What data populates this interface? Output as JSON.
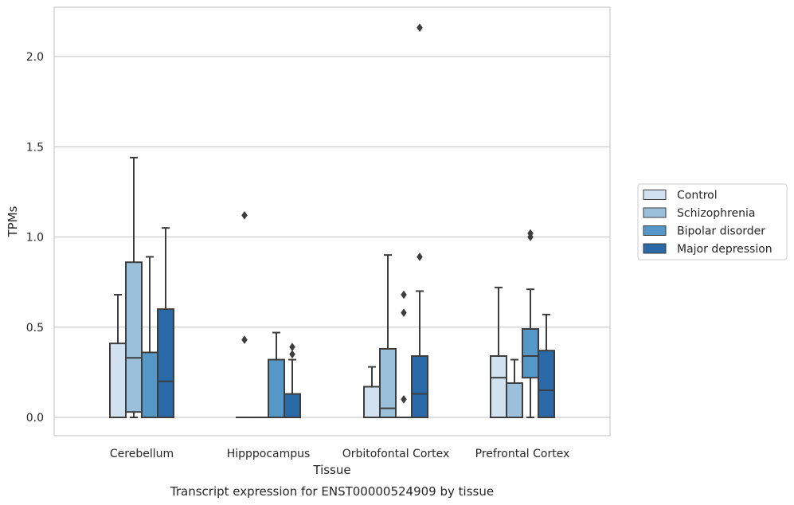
{
  "chart_data": {
    "type": "box",
    "caption": "Transcript expression for ENST00000524909 by tissue",
    "xlabel": "Tissue",
    "ylabel": "TPMs",
    "ylim": [
      -0.1,
      2.28
    ],
    "yticks": [
      0.0,
      0.5,
      1.0,
      1.5,
      2.0
    ],
    "ytick_labels": [
      "0.0",
      "0.5",
      "1.0",
      "1.5",
      "2.0"
    ],
    "grid": "horizontal",
    "legend_position": "right",
    "categories": [
      "Cerebellum",
      "Hipppocampus",
      "Orbitofontal Cortex",
      "Prefrontal Cortex"
    ],
    "series": [
      {
        "name": "Control",
        "color": "#d1e1f0",
        "boxes": [
          {
            "q1": 0.0,
            "median": 0.0,
            "q3": 0.41,
            "whisker_low": 0.0,
            "whisker_high": 0.68,
            "outliers": []
          },
          {
            "q1": 0.0,
            "median": 0.0,
            "q3": 0.0,
            "whisker_low": 0.0,
            "whisker_high": 0.0,
            "outliers": [
              1.12,
              0.43
            ]
          },
          {
            "q1": 0.0,
            "median": 0.0,
            "q3": 0.17,
            "whisker_low": 0.0,
            "whisker_high": 0.28,
            "outliers": []
          },
          {
            "q1": 0.0,
            "median": 0.22,
            "q3": 0.34,
            "whisker_low": 0.0,
            "whisker_high": 0.72,
            "outliers": []
          }
        ]
      },
      {
        "name": "Schizophrenia",
        "color": "#9ac0db",
        "boxes": [
          {
            "q1": 0.03,
            "median": 0.33,
            "q3": 0.86,
            "whisker_low": 0.0,
            "whisker_high": 1.44,
            "outliers": []
          },
          {
            "q1": 0.0,
            "median": 0.0,
            "q3": 0.0,
            "whisker_low": 0.0,
            "whisker_high": 0.0,
            "outliers": []
          },
          {
            "q1": 0.0,
            "median": 0.05,
            "q3": 0.38,
            "whisker_low": 0.0,
            "whisker_high": 0.9,
            "outliers": []
          },
          {
            "q1": 0.0,
            "median": 0.0,
            "q3": 0.19,
            "whisker_low": 0.0,
            "whisker_high": 0.32,
            "outliers": []
          }
        ]
      },
      {
        "name": "Bipolar disorder",
        "color": "#5597c6",
        "boxes": [
          {
            "q1": 0.0,
            "median": 0.0,
            "q3": 0.36,
            "whisker_low": 0.0,
            "whisker_high": 0.89,
            "outliers": []
          },
          {
            "q1": 0.0,
            "median": 0.0,
            "q3": 0.32,
            "whisker_low": 0.0,
            "whisker_high": 0.47,
            "outliers": []
          },
          {
            "q1": 0.0,
            "median": 0.0,
            "q3": 0.0,
            "whisker_low": 0.0,
            "whisker_high": 0.0,
            "outliers": [
              0.68,
              0.58,
              0.1
            ]
          },
          {
            "q1": 0.22,
            "median": 0.34,
            "q3": 0.49,
            "whisker_low": 0.0,
            "whisker_high": 0.71,
            "outliers": [
              1.02,
              1.0
            ]
          }
        ]
      },
      {
        "name": "Major depression",
        "color": "#2a69a8",
        "boxes": [
          {
            "q1": 0.0,
            "median": 0.2,
            "q3": 0.6,
            "whisker_low": 0.0,
            "whisker_high": 1.05,
            "outliers": []
          },
          {
            "q1": 0.0,
            "median": 0.0,
            "q3": 0.13,
            "whisker_low": 0.0,
            "whisker_high": 0.32,
            "outliers": [
              0.39,
              0.35
            ]
          },
          {
            "q1": 0.0,
            "median": 0.13,
            "q3": 0.34,
            "whisker_low": 0.0,
            "whisker_high": 0.7,
            "outliers": [
              2.16,
              0.89
            ]
          },
          {
            "q1": 0.0,
            "median": 0.15,
            "q3": 0.37,
            "whisker_low": 0.0,
            "whisker_high": 0.57,
            "outliers": []
          }
        ]
      }
    ]
  }
}
